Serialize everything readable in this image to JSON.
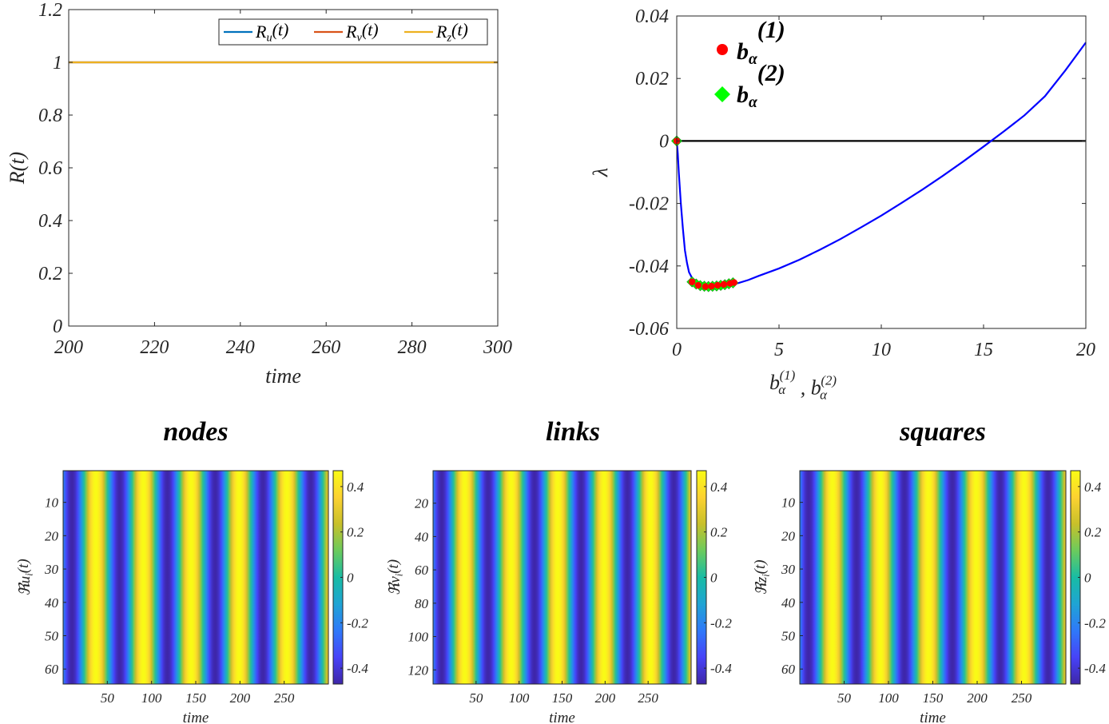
{
  "colors": {
    "Ru": "#0072BD",
    "Rv": "#D95319",
    "Rz": "#EDB120",
    "lambda_curve": "#0000FF",
    "zero_line": "#000000",
    "b1_marker": "#FF0000",
    "b2_marker": "#00FF00",
    "parula": [
      "#3E26A8",
      "#4743F8",
      "#2F79F9",
      "#1FA4D4",
      "#18BCA4",
      "#6BCB5D",
      "#C8C02A",
      "#FCD231",
      "#F9FB15"
    ]
  },
  "chart_data": [
    {
      "id": "R_vs_time",
      "type": "line",
      "xlabel": "time",
      "ylabel": "R(t)",
      "xlim": [
        200,
        300
      ],
      "ylim": [
        0,
        1.2
      ],
      "xticks": [
        "200",
        "220",
        "240",
        "260",
        "280",
        "300"
      ],
      "yticks": [
        "0",
        "0.2",
        "0.4",
        "0.6",
        "0.8",
        "1",
        "1.2"
      ],
      "legend_position": "top-right",
      "series": [
        {
          "name": "Ru(t)",
          "x": [
            200,
            300
          ],
          "y": [
            1,
            1
          ],
          "label_base": "R",
          "label_sub": "u",
          "label_tail": "(t)"
        },
        {
          "name": "Rv(t)",
          "x": [
            200,
            300
          ],
          "y": [
            1,
            1
          ],
          "label_base": "R",
          "label_sub": "v",
          "label_tail": "(t)"
        },
        {
          "name": "Rz(t)",
          "x": [
            200,
            300
          ],
          "y": [
            1,
            1
          ],
          "label_base": "R",
          "label_sub": "z",
          "label_tail": "(t)"
        }
      ]
    },
    {
      "id": "dispersion_relation",
      "type": "line",
      "xlabel": "b_α^(1) , b_α^(2)",
      "ylabel": "λ",
      "xlim": [
        0,
        20
      ],
      "ylim": [
        -0.06,
        0.04
      ],
      "xticks": [
        "0",
        "5",
        "10",
        "15",
        "20"
      ],
      "yticks": [
        "-0.06",
        "-0.04",
        "-0.02",
        "0",
        "0.02",
        "0.04"
      ],
      "legend_position": "top-left",
      "curve": {
        "x": [
          0,
          0.05,
          0.1,
          0.2,
          0.3,
          0.4,
          0.5,
          0.6,
          0.8,
          1,
          1.5,
          2,
          2.5,
          3,
          3.5,
          4,
          5,
          6,
          7,
          8,
          9,
          10,
          11,
          12,
          13,
          14,
          15,
          16,
          17,
          18,
          19,
          20
        ],
        "y": [
          0,
          -0.004,
          -0.01,
          -0.02,
          -0.028,
          -0.035,
          -0.039,
          -0.042,
          -0.0445,
          -0.0455,
          -0.0462,
          -0.0463,
          -0.046,
          -0.0455,
          -0.0445,
          -0.0432,
          -0.0408,
          -0.038,
          -0.0348,
          -0.0314,
          -0.0277,
          -0.0239,
          -0.0198,
          -0.0156,
          -0.0112,
          -0.0066,
          -0.0018,
          0.0031,
          0.0082,
          0.0143,
          0.0226,
          0.0315
        ]
      },
      "markers": [
        {
          "name": "b_α^(1)",
          "legend_base": "b",
          "legend_sub": "α",
          "legend_sup": "(1)",
          "shape": "circle",
          "x": [
            0,
            0.75,
            1.05,
            1.4,
            1.7,
            2.0,
            2.3,
            2.6,
            2.8
          ],
          "y": [
            0,
            -0.0451,
            -0.0462,
            -0.0466,
            -0.0465,
            -0.0462,
            -0.0459,
            -0.0456,
            -0.0453
          ]
        },
        {
          "name": "b_α^(2)",
          "legend_base": "b",
          "legend_sub": "α",
          "legend_sup": "(2)",
          "shape": "diamond",
          "x": [
            0,
            0.75,
            0.95,
            1.15,
            1.35,
            1.55,
            1.75,
            1.95,
            2.15,
            2.35,
            2.55,
            2.75
          ],
          "y": [
            0,
            -0.0451,
            -0.0458,
            -0.0463,
            -0.0465,
            -0.0466,
            -0.0465,
            -0.0464,
            -0.0462,
            -0.046,
            -0.0457,
            -0.0454
          ]
        }
      ]
    },
    {
      "id": "nodes_heatmap",
      "type": "heatmap",
      "title": "nodes",
      "xlabel": "time",
      "ylabel": "ℜu_i(t)",
      "ylabel_base": "ℜu",
      "ylabel_sub": "i",
      "ylabel_tail": "(t)",
      "xlim": [
        0,
        300
      ],
      "ylim": [
        0.5,
        64.5
      ],
      "xticks": [
        50,
        100,
        150,
        200,
        250
      ],
      "yticks": [
        10,
        20,
        30,
        40,
        50,
        60
      ],
      "color_range": [
        -0.47,
        0.47
      ],
      "colorbar_ticks": [
        "0.4",
        "0.2",
        "0",
        "-0.2",
        "-0.4"
      ],
      "colorbar_tick_values": [
        0.4,
        0.2,
        0,
        -0.2,
        -0.4
      ],
      "amplitude": 0.47,
      "period": 54,
      "phase": 10
    },
    {
      "id": "links_heatmap",
      "type": "heatmap",
      "title": "links",
      "xlabel": "time",
      "ylabel": "ℜv_i(t)",
      "ylabel_base": "ℜv",
      "ylabel_sub": "i",
      "ylabel_tail": "(t)",
      "xlim": [
        0,
        300
      ],
      "ylim": [
        0.5,
        128.5
      ],
      "xticks": [
        50,
        100,
        150,
        200,
        250
      ],
      "yticks": [
        20,
        40,
        60,
        80,
        100,
        120
      ],
      "color_range": [
        -0.47,
        0.47
      ],
      "colorbar_ticks": [
        "0.4",
        "0.2",
        "0",
        "-0.2",
        "-0.4"
      ],
      "colorbar_tick_values": [
        0.4,
        0.2,
        0,
        -0.2,
        -0.4
      ],
      "amplitude": 0.47,
      "period": 54,
      "phase": 10
    },
    {
      "id": "squares_heatmap",
      "type": "heatmap",
      "title": "squares",
      "xlabel": "time",
      "ylabel": "ℜz_i(t)",
      "ylabel_base": "ℜz",
      "ylabel_sub": "i",
      "ylabel_tail": "(t)",
      "xlim": [
        0,
        300
      ],
      "ylim": [
        0.5,
        64.5
      ],
      "xticks": [
        50,
        100,
        150,
        200,
        250
      ],
      "yticks": [
        10,
        20,
        30,
        40,
        50,
        60
      ],
      "color_range": [
        -0.47,
        0.47
      ],
      "colorbar_ticks": [
        "0.4",
        "0.2",
        "0",
        "-0.2",
        "-0.4"
      ],
      "colorbar_tick_values": [
        0.4,
        0.2,
        0,
        -0.2,
        -0.4
      ],
      "amplitude": 0.47,
      "period": 54,
      "phase": 10
    }
  ]
}
